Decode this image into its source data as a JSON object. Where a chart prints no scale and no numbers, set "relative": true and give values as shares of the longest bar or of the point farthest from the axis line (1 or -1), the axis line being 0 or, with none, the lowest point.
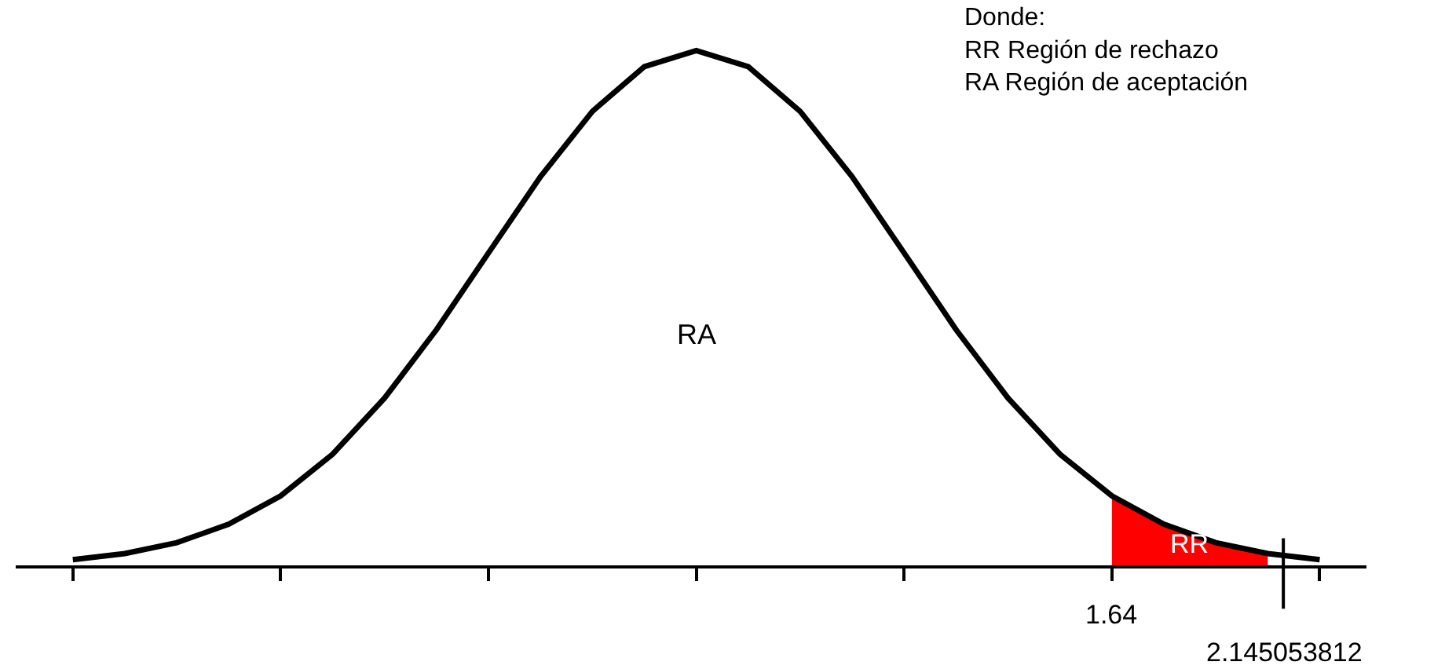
{
  "chart_data": {
    "type": "line",
    "relative": true,
    "categories": [
      null,
      null,
      null,
      null,
      null,
      null,
      null,
      null,
      null,
      null,
      null,
      null,
      null,
      null,
      null,
      null,
      null,
      null,
      null,
      null,
      null,
      null,
      null,
      null,
      null
    ],
    "series": [
      {
        "color": "#000000",
        "values": [
          0.011,
          0.023,
          0.044,
          0.08,
          0.135,
          0.216,
          0.325,
          0.458,
          0.607,
          0.755,
          0.882,
          0.969,
          1,
          0.969,
          0.882,
          0.755,
          0.607,
          0.458,
          0.325,
          0.216,
          0.135,
          0.08,
          0.044,
          0.023,
          0.011
        ]
      },
      {
        "type": "area",
        "color": "#ff0000",
        "values": [
          null,
          null,
          null,
          null,
          null,
          null,
          null,
          null,
          null,
          null,
          null,
          null,
          null,
          null,
          null,
          null,
          null,
          null,
          null,
          null,
          0.135,
          0.08,
          0.044,
          0.023,
          null
        ]
      }
    ],
    "annotations": [
      "RA",
      "Donde:\nRR Región de rechazo\nRA Región de aceptación",
      "RR",
      "1.64",
      "2.145053812"
    ]
  }
}
